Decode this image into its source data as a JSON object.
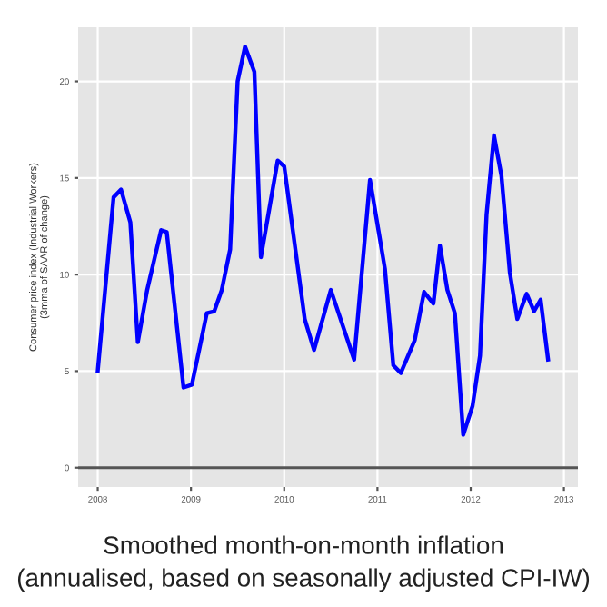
{
  "chart_data": {
    "type": "line",
    "title": "Smoothed month-on-month inflation\n(annualised, based on seasonally adjusted CPI-IW)",
    "ylabel": "Consumer price index (Industrial Workers)\n(3mma of SAAR of change)",
    "x": [
      2008.0,
      2008.17,
      2008.25,
      2008.35,
      2008.43,
      2008.53,
      2008.68,
      2008.74,
      2008.92,
      2009.01,
      2009.17,
      2009.25,
      2009.33,
      2009.42,
      2009.5,
      2009.58,
      2009.68,
      2009.75,
      2009.93,
      2010.0,
      2010.22,
      2010.32,
      2010.5,
      2010.75,
      2010.92,
      2011.08,
      2011.17,
      2011.25,
      2011.4,
      2011.5,
      2011.6,
      2011.67,
      2011.75,
      2011.83,
      2011.92,
      2012.02,
      2012.1,
      2012.17,
      2012.25,
      2012.33,
      2012.42,
      2012.5,
      2012.6,
      2012.68,
      2012.75,
      2012.83
    ],
    "series": [
      {
        "color": "#0000ff",
        "values": [
          5.0,
          14.0,
          14.4,
          12.7,
          6.5,
          9.2,
          12.3,
          12.2,
          4.15,
          4.3,
          8.0,
          8.1,
          9.2,
          11.3,
          20.0,
          21.8,
          20.5,
          10.9,
          15.9,
          15.6,
          7.7,
          6.1,
          9.2,
          5.6,
          14.9,
          10.3,
          5.3,
          4.9,
          6.6,
          9.1,
          8.5,
          11.5,
          9.2,
          8.0,
          1.7,
          3.2,
          5.8,
          13.1,
          17.2,
          15.1,
          10.1,
          7.7,
          9.0,
          8.1,
          8.7,
          5.6
        ]
      }
    ],
    "xlim": [
      2007.79,
      2013.15
    ],
    "xticks": [
      2008,
      2009,
      2010,
      2011,
      2012,
      2013
    ],
    "ylim": [
      -1.0,
      22.8
    ],
    "yticks": [
      0,
      5,
      10,
      15,
      20
    ],
    "ref_lines": [
      {
        "axis": "y",
        "value": 0,
        "color": "#555555"
      }
    ],
    "grid": true,
    "legend": false,
    "marker": "none",
    "line_style": "solid"
  }
}
